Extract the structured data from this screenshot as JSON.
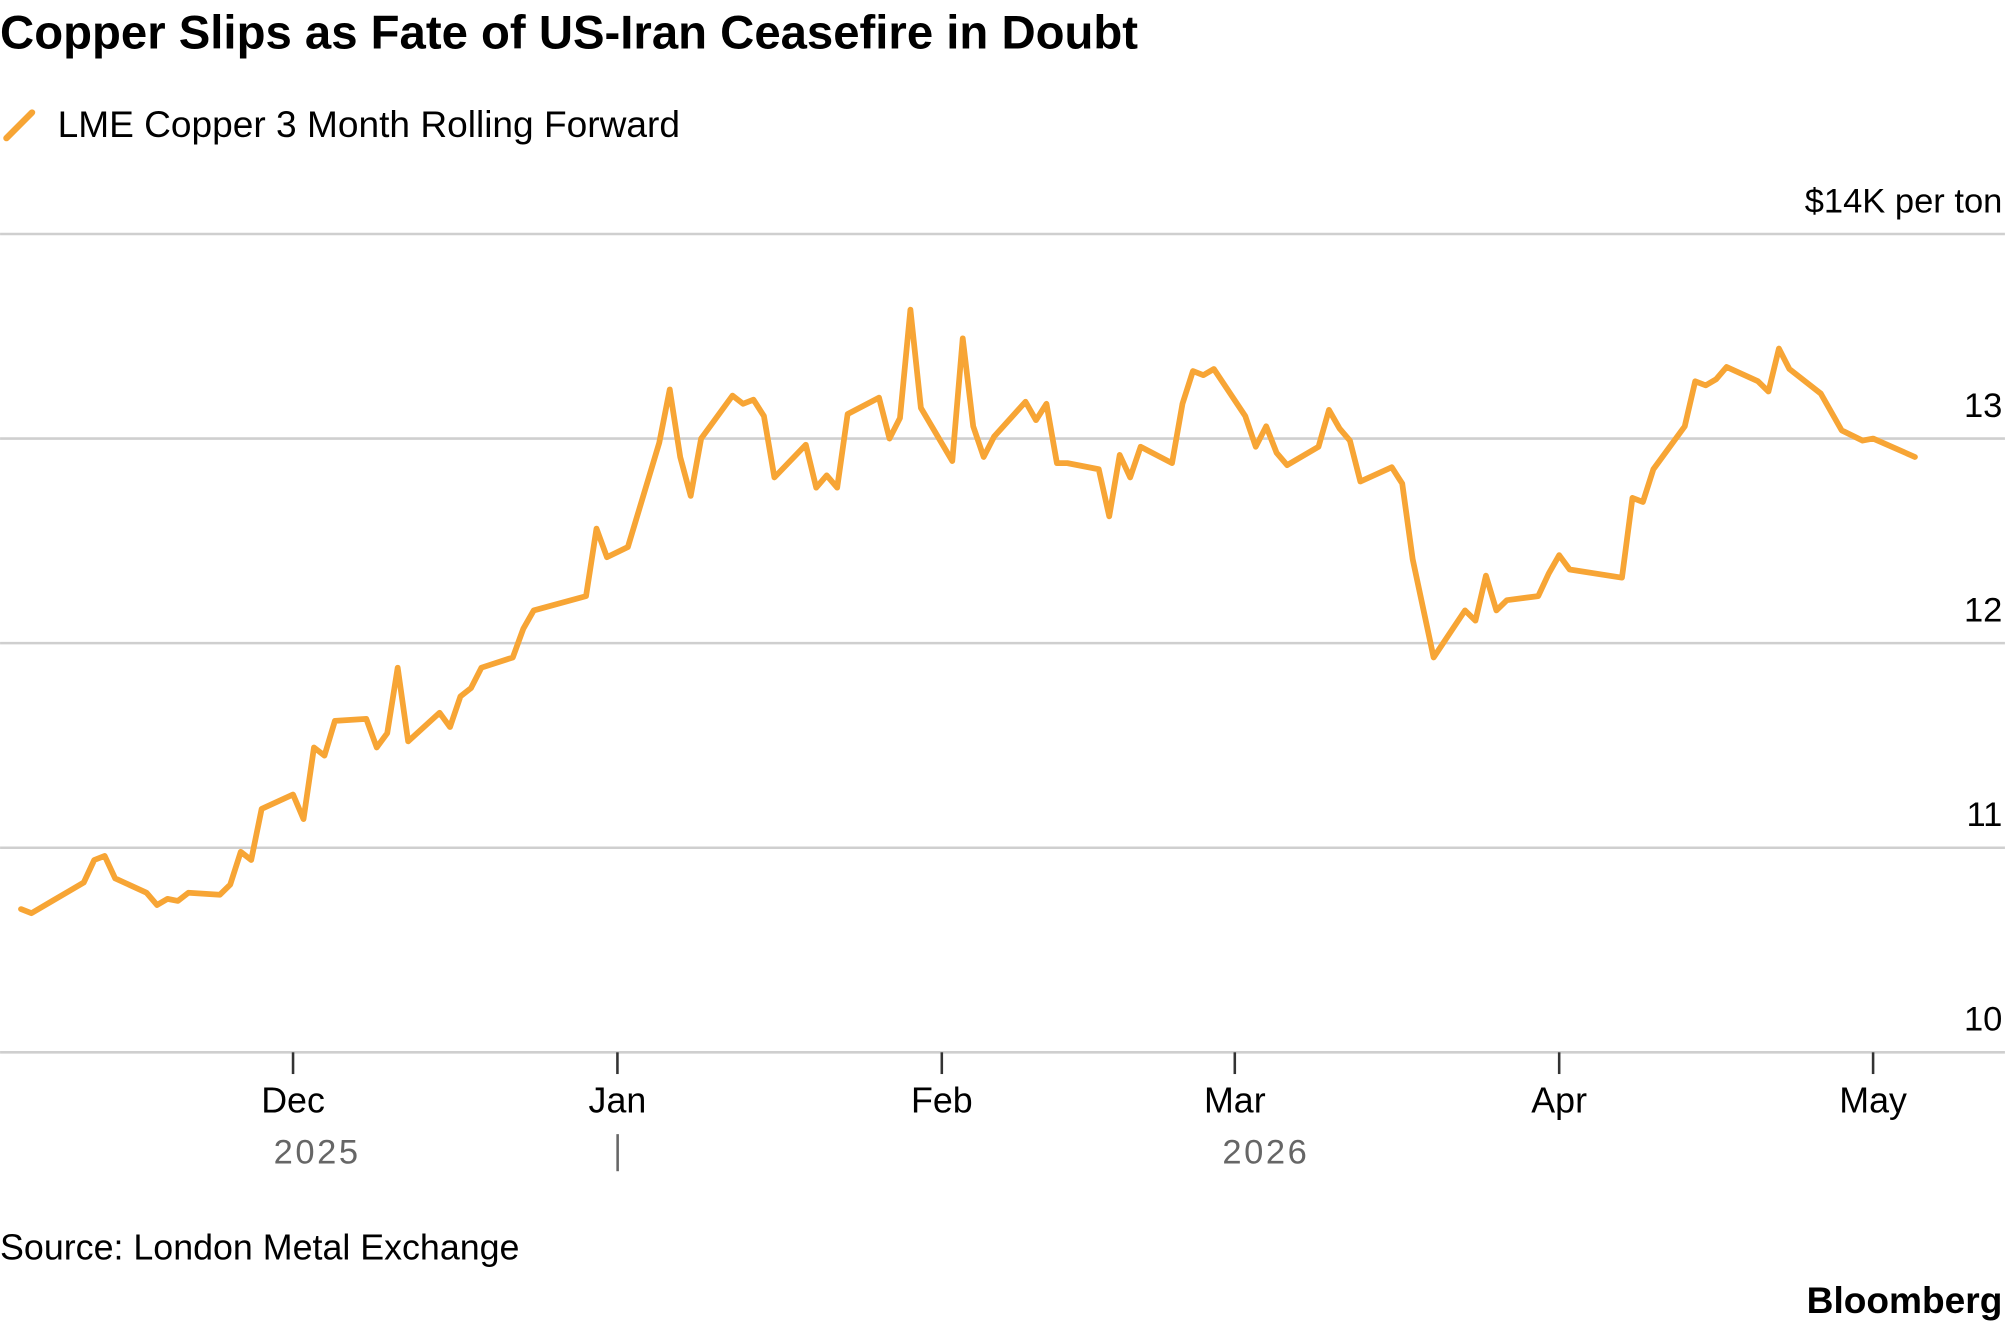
{
  "chart_data": {
    "type": "line",
    "title": "Copper Slips as Fate of US-Iran Ceasefire in Doubt",
    "source": "Source: London Metal Exchange",
    "brand": "Bloomberg",
    "year_labels": [
      "2025",
      "2026"
    ],
    "x": [
      -26,
      -25,
      -23,
      -20,
      -19,
      -18,
      -17,
      -14,
      -13,
      -12,
      -11,
      -10,
      -7,
      -6,
      -5,
      -4,
      -3,
      0,
      1,
      2,
      3,
      4,
      7,
      8,
      9,
      10,
      11,
      14,
      15,
      16,
      17,
      18,
      21,
      22,
      23,
      28,
      29,
      30,
      32,
      35,
      36,
      37,
      38,
      39,
      42,
      43,
      44,
      45,
      46,
      49,
      50,
      51,
      52,
      53,
      56,
      57,
      58,
      59,
      60,
      63,
      64,
      65,
      66,
      67,
      70,
      71,
      72,
      73,
      74,
      77,
      78,
      79,
      80,
      81,
      84,
      85,
      86,
      87,
      88,
      91,
      92,
      93,
      94,
      95,
      98,
      99,
      100,
      101,
      102,
      105,
      106,
      107,
      109,
      112,
      113,
      114,
      115,
      116,
      119,
      120,
      121,
      122,
      127,
      128,
      129,
      130,
      133,
      134,
      135,
      136,
      137,
      140,
      141,
      142,
      143,
      146,
      148,
      150,
      151,
      155
    ],
    "series": [
      {
        "name": "LME Copper 3 Month Rolling Forward",
        "color": "#f7a535",
        "values": [
          10.7,
          10.68,
          10.74,
          10.83,
          10.94,
          10.96,
          10.85,
          10.78,
          10.72,
          10.75,
          10.74,
          10.78,
          10.77,
          10.82,
          10.98,
          10.94,
          11.19,
          11.26,
          11.14,
          11.49,
          11.45,
          11.62,
          11.63,
          11.49,
          11.56,
          11.88,
          11.52,
          11.66,
          11.59,
          11.74,
          11.78,
          11.88,
          11.93,
          12.07,
          12.16,
          12.23,
          12.56,
          12.42,
          12.47,
          12.98,
          13.24,
          12.91,
          12.72,
          13.0,
          13.21,
          13.17,
          13.19,
          13.11,
          12.81,
          12.97,
          12.76,
          12.82,
          12.76,
          13.12,
          13.2,
          13.0,
          13.1,
          13.63,
          13.15,
          12.89,
          13.49,
          13.06,
          12.91,
          13.01,
          13.18,
          13.09,
          13.17,
          12.88,
          12.88,
          12.85,
          12.62,
          12.92,
          12.81,
          12.96,
          12.88,
          13.17,
          13.33,
          13.31,
          13.34,
          13.11,
          12.96,
          13.06,
          12.93,
          12.87,
          12.96,
          13.14,
          13.05,
          12.99,
          12.79,
          12.86,
          12.78,
          12.41,
          11.93,
          12.16,
          12.11,
          12.33,
          12.16,
          12.21,
          12.23,
          12.34,
          12.43,
          12.36,
          12.32,
          12.71,
          12.69,
          12.85,
          13.06,
          13.28,
          13.26,
          13.29,
          13.35,
          13.28,
          13.23,
          13.44,
          13.34,
          13.22,
          13.04,
          12.99,
          13.0,
          12.91
        ]
      }
    ],
    "xlim": [
      -28,
      163.6
    ],
    "xticks": [
      {
        "value": 0,
        "label": "Dec"
      },
      {
        "value": 31,
        "label": "Jan"
      },
      {
        "value": 62,
        "label": "Feb"
      },
      {
        "value": 90,
        "label": "Mar"
      },
      {
        "value": 121,
        "label": "Apr"
      },
      {
        "value": 151,
        "label": "May"
      }
    ],
    "ylim": [
      10,
      14
    ],
    "yticks": [
      10,
      11,
      12,
      13,
      {
        "value": 14,
        "label": "$14K per ton"
      }
    ],
    "grid": true
  }
}
